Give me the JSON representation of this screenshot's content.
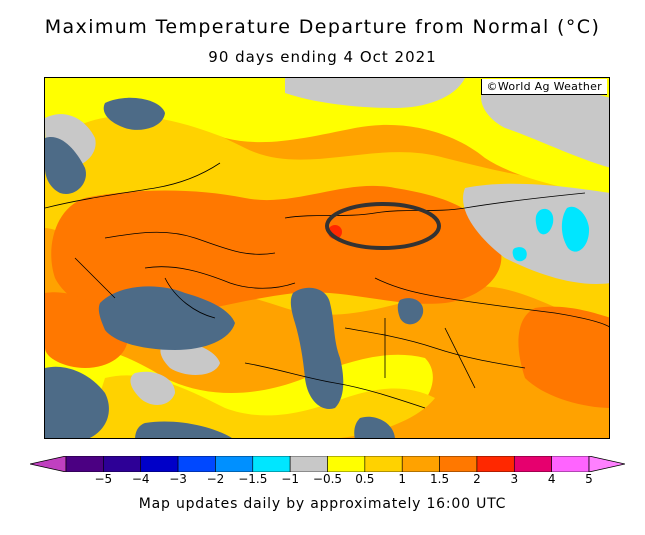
{
  "title": "Maximum Temperature Departure from Normal (°C)",
  "subtitle": "90 days ending 4 Oct 2021",
  "credit": "©World Ag Weather",
  "legend": {
    "labels": [
      "−5",
      "−4",
      "−3",
      "−2",
      "−1.5",
      "−1",
      "−0.5",
      "0.5",
      "1",
      "1.5",
      "2",
      "3",
      "4",
      "5"
    ],
    "colors": [
      "#4b0082",
      "#2d0096",
      "#0000c8",
      "#0048ff",
      "#0090ff",
      "#00e6ff",
      "#c8c8c8",
      "#ffff00",
      "#ffd200",
      "#ffa200",
      "#ff7800",
      "#ff2800",
      "#e6006e",
      "#ff64ff"
    ]
  },
  "footer": "Map updates daily by approximately 16:00 UTC",
  "colors": {
    "water": "#4d6b87",
    "neutral": "#c8c8c8",
    "yellow": "#ffff00",
    "light_orange": "#ffd200",
    "orange": "#ffa200",
    "deep_orange": "#ff7800",
    "red": "#ff2800",
    "cyan": "#00e6ff",
    "annotation": "#333333"
  }
}
